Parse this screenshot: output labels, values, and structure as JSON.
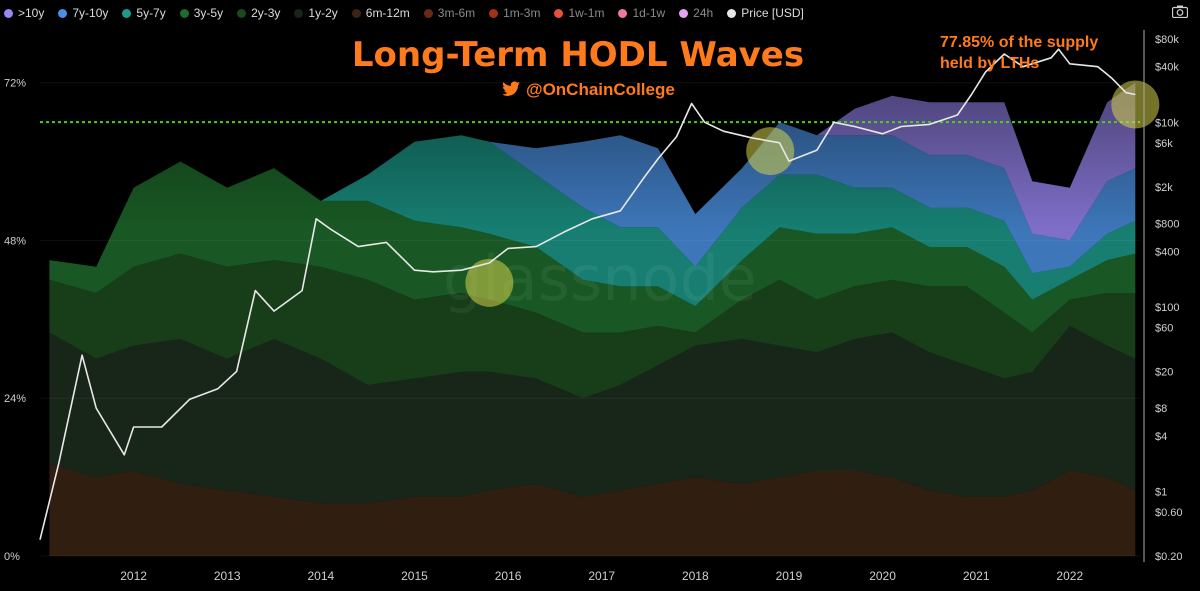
{
  "legend": [
    {
      "label": ">10y",
      "color": "#9b87f5"
    },
    {
      "label": "7y-10y",
      "color": "#4a90e2"
    },
    {
      "label": "5y-7y",
      "color": "#1c9a8a"
    },
    {
      "label": "3y-5y",
      "color": "#1f6b2c"
    },
    {
      "label": "2y-3y",
      "color": "#1c4a1f"
    },
    {
      "label": "1y-2y",
      "color": "#18261a"
    },
    {
      "label": "6m-12m",
      "color": "#3b2414"
    },
    {
      "label": "3m-6m",
      "color": "#6a2a12"
    },
    {
      "label": "1m-3m",
      "color": "#a23315"
    },
    {
      "label": "1w-1m",
      "color": "#e8523c"
    },
    {
      "label": "1d-1w",
      "color": "#f07aa0"
    },
    {
      "label": "24h",
      "color": "#e4a4f0"
    },
    {
      "label": "Price [USD]",
      "color": "#e6e6e6"
    }
  ],
  "title": "Long-Term HODL Waves",
  "handle": "@OnChainCollege",
  "annotation_line1": "77.85% of the supply",
  "annotation_line2": "held by LTHs",
  "watermark": "glassnode",
  "chart_data": {
    "type": "area",
    "x": [
      2011.1,
      2011.6,
      2012.0,
      2012.5,
      2013.0,
      2013.5,
      2014.0,
      2014.5,
      2015.0,
      2015.5,
      2015.8,
      2016.3,
      2016.8,
      2017.2,
      2017.6,
      2018.0,
      2018.5,
      2018.9,
      2019.3,
      2019.7,
      2020.1,
      2020.5,
      2020.9,
      2021.3,
      2021.6,
      2022.0,
      2022.4,
      2022.7
    ],
    "series": [
      {
        "name": "6m-12m",
        "values": [
          14,
          12,
          13,
          11,
          10,
          9,
          8,
          8,
          9,
          9,
          10,
          11,
          9,
          10,
          11,
          12,
          11,
          12,
          13,
          13,
          12,
          10,
          9,
          9,
          10,
          13,
          12,
          10
        ]
      },
      {
        "name": "1y-2y",
        "values": [
          20,
          18,
          19,
          22,
          20,
          24,
          22,
          18,
          18,
          19,
          18,
          16,
          15,
          16,
          18,
          20,
          22,
          20,
          18,
          20,
          22,
          21,
          20,
          18,
          18,
          22,
          20,
          20
        ]
      },
      {
        "name": "2y-3y",
        "values": [
          8,
          10,
          12,
          13,
          14,
          12,
          14,
          16,
          12,
          12,
          11,
          10,
          10,
          8,
          6,
          2,
          6,
          10,
          8,
          8,
          8,
          10,
          12,
          10,
          6,
          4,
          8,
          10
        ]
      },
      {
        "name": "3y-5y",
        "values": [
          3,
          4,
          12,
          14,
          12,
          14,
          10,
          12,
          12,
          10,
          10,
          10,
          8,
          7,
          6,
          4,
          6,
          8,
          10,
          8,
          8,
          6,
          6,
          7,
          5,
          3,
          5,
          6
        ]
      },
      {
        "name": "5y-7y",
        "values": [
          0,
          0,
          0,
          0,
          0,
          0,
          0,
          4,
          12,
          14,
          14,
          11,
          11,
          9,
          9,
          6,
          8,
          8,
          9,
          7,
          6,
          6,
          6,
          7,
          4,
          2,
          4,
          5
        ]
      },
      {
        "name": "7y-10y",
        "values": [
          0,
          0,
          0,
          0,
          0,
          0,
          0,
          0,
          0,
          0,
          0,
          4,
          10,
          14,
          12,
          8,
          6,
          8,
          6,
          8,
          8,
          8,
          8,
          8,
          6,
          4,
          8,
          8
        ]
      },
      {
        "name": ">10y",
        "values": [
          0,
          0,
          0,
          0,
          0,
          0,
          0,
          0,
          0,
          0,
          0,
          0,
          0,
          0,
          0,
          0,
          0,
          0,
          0,
          4,
          6,
          8,
          8,
          10,
          8,
          8,
          12,
          13
        ]
      }
    ],
    "price": {
      "x": [
        2011.0,
        2011.2,
        2011.45,
        2011.6,
        2011.9,
        2012.0,
        2012.3,
        2012.6,
        2012.9,
        2013.1,
        2013.3,
        2013.5,
        2013.8,
        2013.95,
        2014.1,
        2014.4,
        2014.7,
        2015.0,
        2015.2,
        2015.5,
        2015.8,
        2016.0,
        2016.3,
        2016.6,
        2016.9,
        2017.2,
        2017.45,
        2017.6,
        2017.8,
        2017.96,
        2018.1,
        2018.3,
        2018.6,
        2018.9,
        2019.0,
        2019.3,
        2019.48,
        2019.7,
        2020.0,
        2020.2,
        2020.5,
        2020.8,
        2020.95,
        2021.1,
        2021.3,
        2021.5,
        2021.8,
        2021.88,
        2022.0,
        2022.3,
        2022.45,
        2022.6,
        2022.7
      ],
      "values": [
        0.3,
        2,
        30,
        8,
        2.5,
        5,
        5,
        10,
        13,
        20,
        150,
        90,
        150,
        900,
        700,
        450,
        500,
        250,
        240,
        250,
        300,
        430,
        450,
        650,
        900,
        1100,
        2500,
        4000,
        7000,
        16000,
        10000,
        8000,
        6800,
        6000,
        3800,
        5000,
        10000,
        9000,
        7500,
        9000,
        9500,
        12000,
        20000,
        35000,
        55000,
        40000,
        50000,
        62000,
        43000,
        40000,
        30000,
        21000,
        20000
      ]
    },
    "ylim_left": [
      0,
      80
    ],
    "left_ticks": [
      "0%",
      "24%",
      "48%",
      "72%"
    ],
    "right_ticks": [
      "$0.20",
      "$0.60",
      "$1",
      "$4",
      "$8",
      "$20",
      "$60",
      "$100",
      "$400",
      "$800",
      "$2k",
      "$6k",
      "$10k",
      "$40k",
      "$80k"
    ],
    "xlabels": [
      "2012",
      "2013",
      "2014",
      "2015",
      "2016",
      "2017",
      "2018",
      "2019",
      "2020",
      "2021",
      "2022"
    ],
    "reference_line_pct": 77.85,
    "highlights": [
      2015.8,
      2018.8,
      2022.7
    ]
  }
}
